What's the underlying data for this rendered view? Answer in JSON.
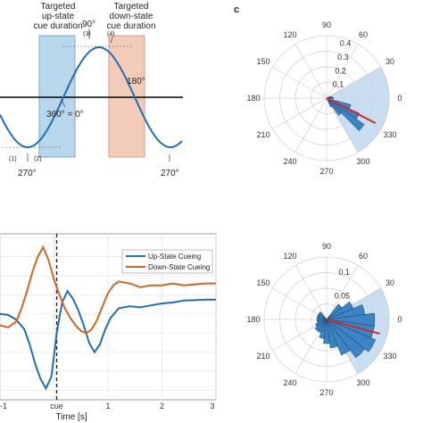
{
  "panel_c_label": "c",
  "chart_data": [
    {
      "type": "line",
      "title": "",
      "series": [
        {
          "values_description": "cosine",
          "kind": "sine"
        }
      ],
      "annotations": {
        "up_state": "Targeted\nup-state\ncue duration",
        "down_state": "Targeted\ndown-state\ncue duration",
        "deg_90": "90°",
        "deg_180": "180°",
        "deg_360": "360° = 0°",
        "deg_270_left": "270°",
        "deg_270_right": "270°",
        "marker_1": "(1)",
        "marker_2": "(2)",
        "marker_3": "(3)",
        "marker_4": "(4)"
      },
      "colors": {
        "up_box": "#b9d7ec",
        "down_box": "#f3cbb9",
        "line": "#1f6fb4"
      }
    },
    {
      "type": "line",
      "xlabel": "Time [s]",
      "xticks": [
        "-1",
        "0",
        "cue",
        "1",
        "2",
        "3"
      ],
      "xlim": [
        -1,
        3
      ],
      "legend": [
        "Up-State Cueing",
        "Down-State Cueing"
      ],
      "legend_position": "top-right",
      "grid": true,
      "series": [
        {
          "name": "Up-State Cueing",
          "color": "#1f6fb4",
          "x": [
            -1,
            -0.85,
            -0.7,
            -0.55,
            -0.45,
            -0.35,
            -0.25,
            -0.15,
            -0.05,
            0.0,
            0.05,
            0.15,
            0.25,
            0.35,
            0.45,
            0.55,
            0.65,
            0.75,
            0.85,
            0.95,
            1.05,
            1.2,
            1.4,
            1.6,
            1.8,
            2.0,
            2.2,
            2.4,
            2.6,
            2.8,
            3.0
          ],
          "y": [
            0.0,
            -0.05,
            -0.3,
            -0.8,
            -1.6,
            -2.6,
            -3.4,
            -3.9,
            -3.3,
            -2.2,
            -1.0,
            0.6,
            1.2,
            0.8,
            0.2,
            -0.6,
            -1.5,
            -2.0,
            -1.6,
            -0.8,
            -0.2,
            0.3,
            0.4,
            0.35,
            0.45,
            0.55,
            0.6,
            0.7,
            0.72,
            0.75,
            0.75
          ]
        },
        {
          "name": "Down-State Cueing",
          "color": "#d2651f",
          "x": [
            -1,
            -0.85,
            -0.7,
            -0.6,
            -0.5,
            -0.4,
            -0.3,
            -0.2,
            -0.1,
            0.0,
            0.1,
            0.2,
            0.3,
            0.4,
            0.5,
            0.6,
            0.7,
            0.8,
            0.9,
            1.0,
            1.1,
            1.2,
            1.4,
            1.6,
            1.8,
            2.0,
            2.2,
            2.4,
            2.6,
            2.8,
            3.0
          ],
          "y": [
            -0.6,
            -0.7,
            -0.4,
            0.3,
            1.2,
            2.2,
            3.0,
            3.5,
            2.8,
            1.8,
            1.0,
            0.3,
            -0.2,
            -0.6,
            -0.9,
            -1.0,
            -0.8,
            -0.3,
            0.4,
            1.1,
            1.5,
            1.7,
            1.6,
            1.4,
            1.5,
            1.5,
            1.6,
            1.5,
            1.55,
            1.6,
            1.6
          ]
        }
      ],
      "vline_label": "cue"
    },
    {
      "type": "polar-histogram",
      "angle_labels": [
        "90",
        "60",
        "30",
        "0",
        "330",
        "300",
        "270",
        "240",
        "210",
        "180",
        "150",
        "120"
      ],
      "radial_ticks": [
        "0.1",
        "0.2",
        "0.3",
        "0.4"
      ],
      "rlim": [
        0,
        0.45
      ],
      "bins_deg": [
        0,
        10,
        20,
        340,
        330,
        320,
        310,
        300
      ],
      "values": [
        0.05,
        0.04,
        0.03,
        0.18,
        0.26,
        0.33,
        0.15,
        0.07
      ],
      "shaded_range_deg": [
        300,
        30
      ],
      "mean_angle_deg": 333,
      "colors": {
        "bar": "#3d84c4",
        "shade": "#c9dff1",
        "mean": "#d62728"
      }
    },
    {
      "type": "polar-histogram",
      "angle_labels": [
        "90",
        "60",
        "30",
        "0",
        "330",
        "300",
        "270",
        "240",
        "210",
        "180",
        "150",
        "120"
      ],
      "radial_ticks": [
        "0.05",
        "0.1"
      ],
      "rlim": [
        0,
        0.13
      ],
      "bins_deg": [
        0,
        15,
        30,
        45,
        345,
        330,
        315,
        300,
        285,
        270,
        255,
        240,
        225,
        210,
        195,
        180,
        165,
        150,
        135
      ],
      "values": [
        0.1,
        0.08,
        0.06,
        0.04,
        0.1,
        0.11,
        0.1,
        0.08,
        0.06,
        0.05,
        0.04,
        0.03,
        0.03,
        0.025,
        0.02,
        0.02,
        0.02,
        0.02,
        0.02
      ],
      "shaded_range_deg": [
        300,
        30
      ],
      "mean_angle_deg": 345,
      "colors": {
        "bar": "#3d84c4",
        "shade": "#c9dff1",
        "mean": "#d62728"
      }
    }
  ]
}
